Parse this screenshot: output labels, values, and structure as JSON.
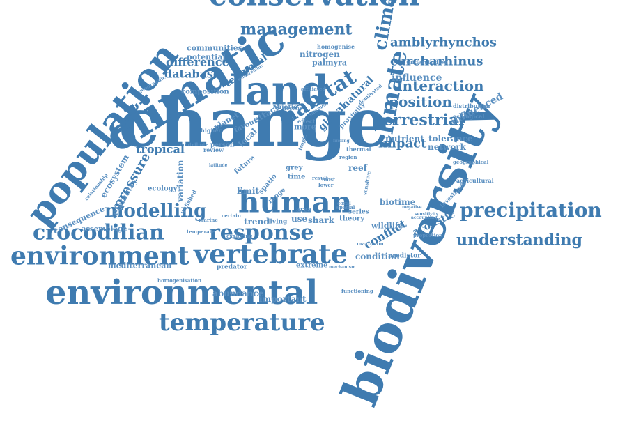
{
  "colors": {
    "primary": "#3f7bb0",
    "secondary": "#5a8fc0",
    "background": "#ffffff"
  },
  "words": [
    {
      "text": "change"
    },
    {
      "text": "biodiversity"
    },
    {
      "text": "climatic"
    },
    {
      "text": "population"
    },
    {
      "text": "environmental"
    },
    {
      "text": "conservation"
    },
    {
      "text": "land"
    },
    {
      "text": "human"
    },
    {
      "text": "environment"
    },
    {
      "text": "vertebrate"
    },
    {
      "text": "crocodilian"
    },
    {
      "text": "response"
    },
    {
      "text": "temperature"
    },
    {
      "text": "precipitation"
    },
    {
      "text": "climate"
    },
    {
      "text": "climate"
    },
    {
      "text": "modelling"
    },
    {
      "text": "understanding"
    },
    {
      "text": "management"
    },
    {
      "text": "terrestrial"
    },
    {
      "text": "amblyrhynchos"
    },
    {
      "text": "carcharhinus"
    },
    {
      "text": "interaction"
    },
    {
      "text": "position"
    },
    {
      "text": "habitat"
    },
    {
      "text": "impact"
    },
    {
      "text": "pressure"
    },
    {
      "text": "tropical"
    },
    {
      "text": "ecosystem"
    },
    {
      "text": "telemetry"
    },
    {
      "text": "consequence"
    },
    {
      "text": "nutrient"
    },
    {
      "text": "tolerance"
    },
    {
      "text": "network"
    },
    {
      "text": "influence"
    },
    {
      "text": "influenced"
    },
    {
      "text": "database"
    },
    {
      "text": "difference"
    },
    {
      "text": "potential"
    },
    {
      "text": "communities"
    },
    {
      "text": "nitrogen"
    },
    {
      "text": "homogenise"
    },
    {
      "text": "palmyra"
    },
    {
      "text": "temporal"
    },
    {
      "text": "natural"
    },
    {
      "text": "global"
    },
    {
      "text": "attack"
    },
    {
      "text": "local"
    },
    {
      "text": "planet"
    },
    {
      "text": "favour"
    },
    {
      "text": "more"
    },
    {
      "text": "reef"
    },
    {
      "text": "conflict"
    },
    {
      "text": "condition"
    },
    {
      "text": "acoustic"
    },
    {
      "text": "wildlife"
    },
    {
      "text": "biotime"
    },
    {
      "text": "predictor"
    },
    {
      "text": "extreme"
    },
    {
      "text": "abundance"
    },
    {
      "text": "important"
    },
    {
      "text": "mediterranean"
    },
    {
      "text": "assemblage"
    },
    {
      "text": "predator"
    },
    {
      "text": "trend"
    },
    {
      "text": "use"
    },
    {
      "text": "shark"
    },
    {
      "text": "theory"
    },
    {
      "text": "series"
    },
    {
      "text": "living"
    },
    {
      "text": "limit"
    },
    {
      "text": "variation"
    },
    {
      "text": "ecology"
    },
    {
      "text": "agricultural"
    },
    {
      "text": "investigate"
    },
    {
      "text": "composition"
    },
    {
      "text": "ecological"
    },
    {
      "text": "distribution"
    },
    {
      "text": "homogenisation"
    },
    {
      "text": "functioning"
    },
    {
      "text": "marine"
    },
    {
      "text": "exploring"
    },
    {
      "text": "certain"
    },
    {
      "text": "temperate"
    },
    {
      "text": "relationship"
    },
    {
      "text": "geographic"
    },
    {
      "text": "vulnerability"
    },
    {
      "text": "abiotic"
    },
    {
      "text": "person"
    },
    {
      "text": "review"
    },
    {
      "text": "higher"
    },
    {
      "text": "contribute"
    },
    {
      "text": "decline"
    },
    {
      "text": "effect"
    },
    {
      "text": "grey"
    },
    {
      "text": "time"
    },
    {
      "text": "future"
    },
    {
      "text": "region"
    },
    {
      "text": "sensitive"
    },
    {
      "text": "spatio"
    },
    {
      "text": "proportion"
    },
    {
      "text": "maximum"
    },
    {
      "text": "mechanism"
    },
    {
      "text": "result"
    },
    {
      "text": "lower"
    },
    {
      "text": "most"
    },
    {
      "text": "understudied"
    },
    {
      "text": "affiliated"
    },
    {
      "text": "dominated"
    },
    {
      "text": "proximity"
    },
    {
      "text": "thermal"
    },
    {
      "text": "finding"
    },
    {
      "text": "negative"
    },
    {
      "text": "geographical"
    },
    {
      "text": "sensitivity"
    },
    {
      "text": "accounting"
    },
    {
      "text": "unfished"
    },
    {
      "text": "spatial"
    },
    {
      "text": "coral"
    },
    {
      "text": "range"
    },
    {
      "text": "area"
    },
    {
      "text": "latitude"
    },
    {
      "text": "tropic"
    },
    {
      "text": "warmer"
    }
  ]
}
